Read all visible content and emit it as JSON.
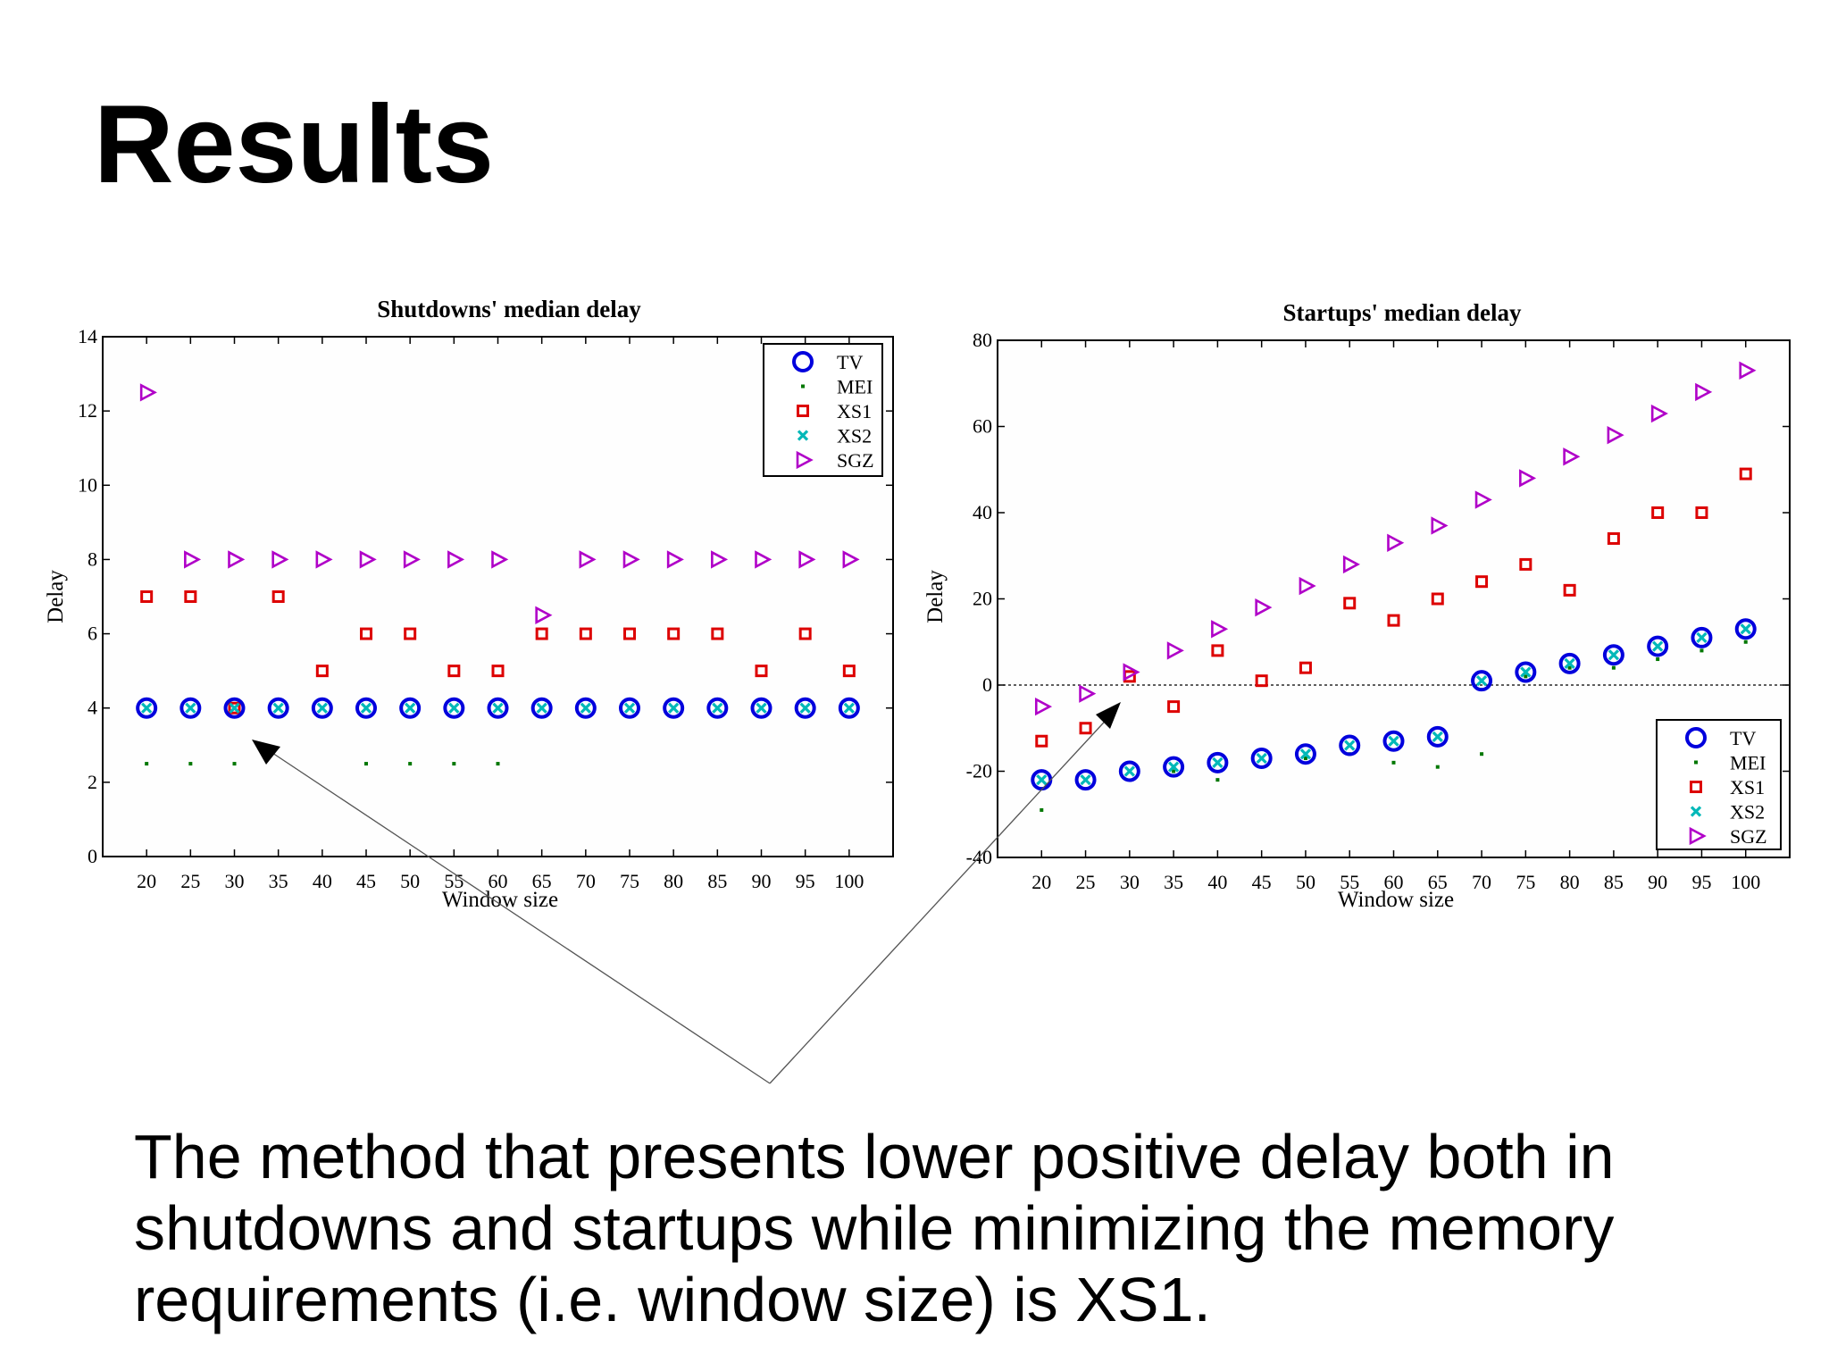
{
  "slide": {
    "title": "Results",
    "text_lines": [
      "The method that presents lower positive delay both in",
      "shutdowns and startups while minimizing the memory",
      "requirements (i.e. window size) is XS1."
    ]
  },
  "colors": {
    "TV": "#0000dd",
    "MEI": "#007700",
    "XS1": "#dd0000",
    "XS2": "#00b8b8",
    "SGZ": "#b000c8"
  },
  "legend_labels": [
    "TV",
    "MEI",
    "XS1",
    "XS2",
    "SGZ"
  ],
  "chart_data": [
    {
      "type": "scatter",
      "title": "Shutdowns' median delay",
      "xlabel": "Window size",
      "ylabel": "Delay",
      "categories": [
        20,
        25,
        30,
        35,
        40,
        45,
        50,
        55,
        60,
        65,
        70,
        75,
        80,
        85,
        90,
        95,
        100
      ],
      "ylim": [
        0,
        14
      ],
      "yticks": [
        0,
        2,
        4,
        6,
        8,
        10,
        12,
        14
      ],
      "legend": "top-right",
      "zero_line": false,
      "series": [
        {
          "name": "TV",
          "values": [
            4,
            4,
            4,
            4,
            4,
            4,
            4,
            4,
            4,
            4,
            4,
            4,
            4,
            4,
            4,
            4,
            4
          ]
        },
        {
          "name": "MEI",
          "values": [
            2.5,
            2.5,
            2.5,
            null,
            null,
            2.5,
            2.5,
            2.5,
            2.5,
            null,
            null,
            null,
            null,
            null,
            null,
            null,
            null
          ]
        },
        {
          "name": "XS1",
          "values": [
            7,
            7,
            4,
            7,
            5,
            6,
            6,
            5,
            5,
            6,
            6,
            6,
            6,
            6,
            5,
            6,
            5
          ]
        },
        {
          "name": "XS2",
          "values": [
            4,
            4,
            4,
            4,
            4,
            4,
            4,
            4,
            4,
            4,
            4,
            4,
            4,
            4,
            4,
            4,
            4
          ]
        },
        {
          "name": "SGZ",
          "values": [
            12.5,
            8,
            8,
            8,
            8,
            8,
            8,
            8,
            8,
            6.5,
            8,
            8,
            8,
            8,
            8,
            8,
            8
          ]
        }
      ]
    },
    {
      "type": "scatter",
      "title": "Startups' median delay",
      "xlabel": "Window size",
      "ylabel": "Delay",
      "categories": [
        20,
        25,
        30,
        35,
        40,
        45,
        50,
        55,
        60,
        65,
        70,
        75,
        80,
        85,
        90,
        95,
        100
      ],
      "ylim": [
        -40,
        80
      ],
      "yticks": [
        -40,
        -20,
        0,
        20,
        40,
        60,
        80
      ],
      "legend": "bottom-right",
      "zero_line": true,
      "series": [
        {
          "name": "TV",
          "values": [
            -22,
            -22,
            -20,
            -19,
            -18,
            -17,
            -16,
            -14,
            -13,
            -12,
            1,
            3,
            5,
            7,
            9,
            11,
            13
          ]
        },
        {
          "name": "MEI",
          "values": [
            -29,
            -22,
            -20,
            -20,
            -22,
            -17,
            -17,
            -16,
            -18,
            -19,
            -16,
            2,
            4,
            4,
            6,
            8,
            10
          ]
        },
        {
          "name": "XS1",
          "values": [
            -13,
            -10,
            2,
            -5,
            8,
            1,
            4,
            19,
            15,
            20,
            24,
            28,
            22,
            34,
            40,
            40,
            49
          ]
        },
        {
          "name": "XS2",
          "values": [
            -22,
            -22,
            -20,
            -19,
            -18,
            -17,
            -16,
            -14,
            -13,
            -12,
            1,
            3,
            5,
            7,
            9,
            11,
            13
          ]
        },
        {
          "name": "SGZ",
          "values": [
            -5,
            -2,
            3,
            8,
            13,
            18,
            23,
            28,
            33,
            37,
            43,
            48,
            53,
            58,
            63,
            68,
            73
          ]
        }
      ]
    }
  ]
}
